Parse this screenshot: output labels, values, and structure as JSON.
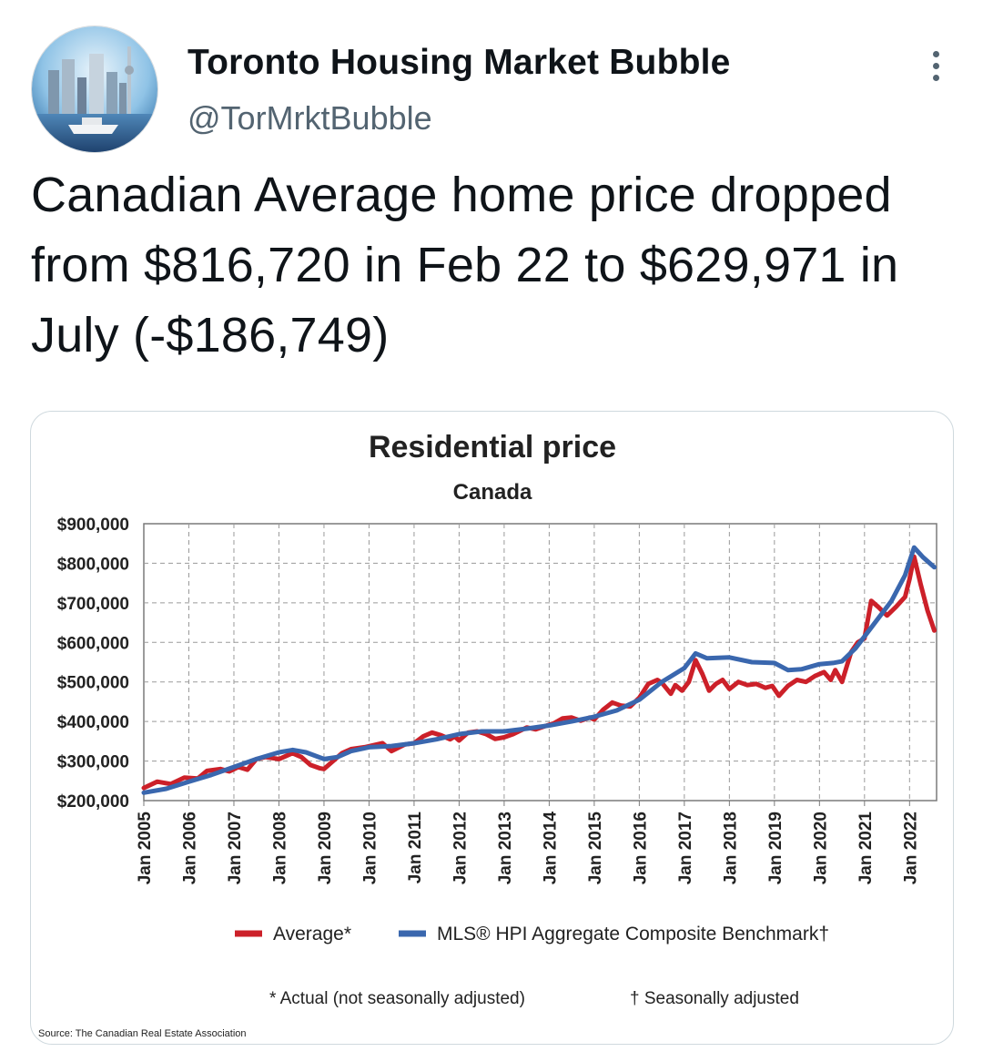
{
  "tweet": {
    "display_name": "Toronto Housing Market Bubble",
    "handle": "@TorMrktBubble",
    "more_icon": "more-options-icon",
    "text": "Canadian Average home price dropped from $816,720 in Feb 22 to $629,971 in July (-$186,749)"
  },
  "colors": {
    "average": "#cc2029",
    "benchmark": "#3a67ae",
    "handle": "#536471"
  },
  "chart_data": {
    "type": "line",
    "title": "Residential price",
    "subtitle": "Canada",
    "xlabel": "",
    "ylabel": "",
    "ylim": [
      200000,
      900000
    ],
    "xlim": [
      2005,
      2022.6
    ],
    "grid": true,
    "legend_position": "bottom",
    "y_ticks": [
      "$900,000",
      "$800,000",
      "$700,000",
      "$600,000",
      "$500,000",
      "$400,000",
      "$300,000",
      "$200,000"
    ],
    "x_ticks": [
      "Jan 2005",
      "Jan 2006",
      "Jan 2007",
      "Jan 2008",
      "Jan 2009",
      "Jan 2010",
      "Jan 2011",
      "Jan 2012",
      "Jan 2013",
      "Jan 2014",
      "Jan 2015",
      "Jan 2016",
      "Jan 2017",
      "Jan 2018",
      "Jan 2019",
      "Jan 2020",
      "Jan 2021",
      "Jan 2022"
    ],
    "series": [
      {
        "name": "Average*",
        "color": "#cc2029",
        "points": [
          [
            2005.0,
            232000
          ],
          [
            2005.3,
            248000
          ],
          [
            2005.6,
            242000
          ],
          [
            2005.9,
            258000
          ],
          [
            2006.2,
            256000
          ],
          [
            2006.4,
            275000
          ],
          [
            2006.7,
            280000
          ],
          [
            2006.9,
            274000
          ],
          [
            2007.1,
            285000
          ],
          [
            2007.3,
            278000
          ],
          [
            2007.5,
            305000
          ],
          [
            2007.7,
            310000
          ],
          [
            2008.0,
            305000
          ],
          [
            2008.3,
            320000
          ],
          [
            2008.5,
            310000
          ],
          [
            2008.7,
            290000
          ],
          [
            2008.9,
            282000
          ],
          [
            2009.0,
            280000
          ],
          [
            2009.2,
            300000
          ],
          [
            2009.4,
            320000
          ],
          [
            2009.6,
            330000
          ],
          [
            2009.9,
            335000
          ],
          [
            2010.1,
            340000
          ],
          [
            2010.3,
            345000
          ],
          [
            2010.5,
            325000
          ],
          [
            2010.8,
            342000
          ],
          [
            2011.0,
            345000
          ],
          [
            2011.2,
            362000
          ],
          [
            2011.4,
            372000
          ],
          [
            2011.6,
            365000
          ],
          [
            2011.8,
            355000
          ],
          [
            2011.9,
            362000
          ],
          [
            2012.0,
            352000
          ],
          [
            2012.2,
            372000
          ],
          [
            2012.4,
            375000
          ],
          [
            2012.6,
            368000
          ],
          [
            2012.8,
            356000
          ],
          [
            2013.0,
            360000
          ],
          [
            2013.2,
            368000
          ],
          [
            2013.5,
            385000
          ],
          [
            2013.7,
            380000
          ],
          [
            2013.9,
            388000
          ],
          [
            2014.1,
            395000
          ],
          [
            2014.3,
            408000
          ],
          [
            2014.5,
            410000
          ],
          [
            2014.7,
            402000
          ],
          [
            2014.9,
            410000
          ],
          [
            2015.0,
            405000
          ],
          [
            2015.2,
            430000
          ],
          [
            2015.4,
            448000
          ],
          [
            2015.6,
            440000
          ],
          [
            2015.8,
            438000
          ],
          [
            2016.0,
            460000
          ],
          [
            2016.2,
            495000
          ],
          [
            2016.4,
            505000
          ],
          [
            2016.5,
            498000
          ],
          [
            2016.7,
            470000
          ],
          [
            2016.8,
            492000
          ],
          [
            2016.95,
            478000
          ],
          [
            2017.1,
            500000
          ],
          [
            2017.25,
            555000
          ],
          [
            2017.4,
            520000
          ],
          [
            2017.55,
            478000
          ],
          [
            2017.7,
            495000
          ],
          [
            2017.85,
            505000
          ],
          [
            2018.0,
            482000
          ],
          [
            2018.2,
            500000
          ],
          [
            2018.4,
            492000
          ],
          [
            2018.6,
            495000
          ],
          [
            2018.8,
            485000
          ],
          [
            2018.95,
            490000
          ],
          [
            2019.1,
            465000
          ],
          [
            2019.3,
            490000
          ],
          [
            2019.5,
            505000
          ],
          [
            2019.7,
            500000
          ],
          [
            2019.9,
            515000
          ],
          [
            2020.1,
            525000
          ],
          [
            2020.25,
            505000
          ],
          [
            2020.35,
            530000
          ],
          [
            2020.5,
            500000
          ],
          [
            2020.7,
            575000
          ],
          [
            2020.85,
            600000
          ],
          [
            2021.0,
            610000
          ],
          [
            2021.15,
            705000
          ],
          [
            2021.3,
            690000
          ],
          [
            2021.5,
            668000
          ],
          [
            2021.7,
            690000
          ],
          [
            2021.9,
            715000
          ],
          [
            2022.0,
            760000
          ],
          [
            2022.1,
            816720
          ],
          [
            2022.25,
            745000
          ],
          [
            2022.4,
            680000
          ],
          [
            2022.55,
            629971
          ]
        ]
      },
      {
        "name": "MLS® HPI Aggregate Composite Benchmark†",
        "color": "#3a67ae",
        "points": [
          [
            2005.0,
            220000
          ],
          [
            2005.5,
            230000
          ],
          [
            2006.0,
            248000
          ],
          [
            2006.5,
            265000
          ],
          [
            2007.0,
            285000
          ],
          [
            2007.5,
            305000
          ],
          [
            2008.0,
            322000
          ],
          [
            2008.3,
            328000
          ],
          [
            2008.6,
            322000
          ],
          [
            2009.0,
            305000
          ],
          [
            2009.3,
            310000
          ],
          [
            2009.6,
            325000
          ],
          [
            2010.0,
            335000
          ],
          [
            2010.5,
            338000
          ],
          [
            2011.0,
            345000
          ],
          [
            2011.5,
            355000
          ],
          [
            2012.0,
            368000
          ],
          [
            2012.5,
            375000
          ],
          [
            2013.0,
            375000
          ],
          [
            2013.5,
            382000
          ],
          [
            2014.0,
            390000
          ],
          [
            2014.5,
            400000
          ],
          [
            2015.0,
            412000
          ],
          [
            2015.5,
            428000
          ],
          [
            2016.0,
            455000
          ],
          [
            2016.5,
            500000
          ],
          [
            2017.0,
            535000
          ],
          [
            2017.25,
            572000
          ],
          [
            2017.5,
            560000
          ],
          [
            2018.0,
            562000
          ],
          [
            2018.5,
            550000
          ],
          [
            2019.0,
            548000
          ],
          [
            2019.3,
            530000
          ],
          [
            2019.6,
            532000
          ],
          [
            2020.0,
            545000
          ],
          [
            2020.3,
            548000
          ],
          [
            2020.5,
            552000
          ],
          [
            2020.8,
            585000
          ],
          [
            2021.0,
            615000
          ],
          [
            2021.3,
            660000
          ],
          [
            2021.6,
            705000
          ],
          [
            2021.9,
            770000
          ],
          [
            2022.1,
            840000
          ],
          [
            2022.3,
            815000
          ],
          [
            2022.55,
            790000
          ]
        ]
      }
    ],
    "footnotes": [
      "* Actual (not seasonally adjusted)",
      "† Seasonally adjusted"
    ],
    "source": "Source: The Canadian Real Estate Association"
  }
}
